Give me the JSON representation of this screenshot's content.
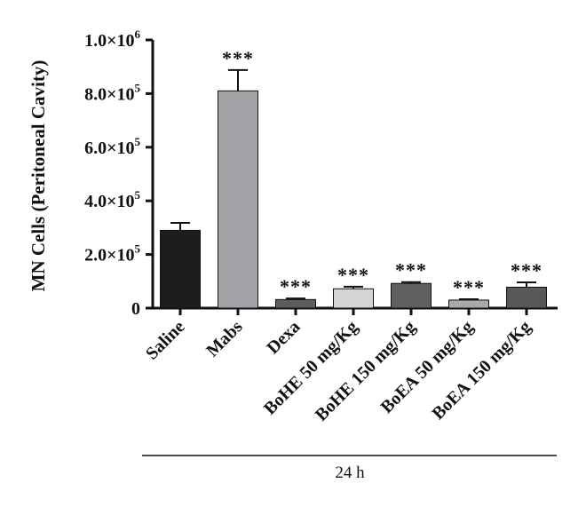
{
  "chart_data": {
    "type": "bar",
    "ylabel": "MN Cells (Peritoneal Cavity)",
    "ylim": [
      0,
      1000000
    ],
    "yticks": [
      {
        "value": 0,
        "label": "0",
        "exp": ""
      },
      {
        "value": 200000,
        "label": "2.0×10",
        "exp": "5"
      },
      {
        "value": 400000,
        "label": "4.0×10",
        "exp": "5"
      },
      {
        "value": 600000,
        "label": "6.0×10",
        "exp": "5"
      },
      {
        "value": 800000,
        "label": "8.0×10",
        "exp": "5"
      },
      {
        "value": 1000000,
        "label": "1.0×10",
        "exp": "6"
      }
    ],
    "categories": [
      "Saline",
      "Mabs",
      "Dexa",
      "BoHE 50 mg/Kg",
      "BoHE 150 mg/Kg",
      "BoEA 50 mg/Kg",
      "BoEA 150 mg/Kg"
    ],
    "values": [
      290000,
      810000,
      32000,
      72000,
      92000,
      30000,
      78000
    ],
    "errors": [
      28000,
      78000,
      4000,
      8000,
      5000,
      3000,
      18000
    ],
    "significance": [
      "",
      "***",
      "***",
      "***",
      "***",
      "***",
      "***"
    ],
    "bar_colors": [
      "#1c1e1c",
      "#a3a1a5",
      "#5c5c5e",
      "#d5d4d2",
      "#5f5f61",
      "#a9a8aa",
      "#58585a"
    ],
    "group_label": "24 h"
  }
}
